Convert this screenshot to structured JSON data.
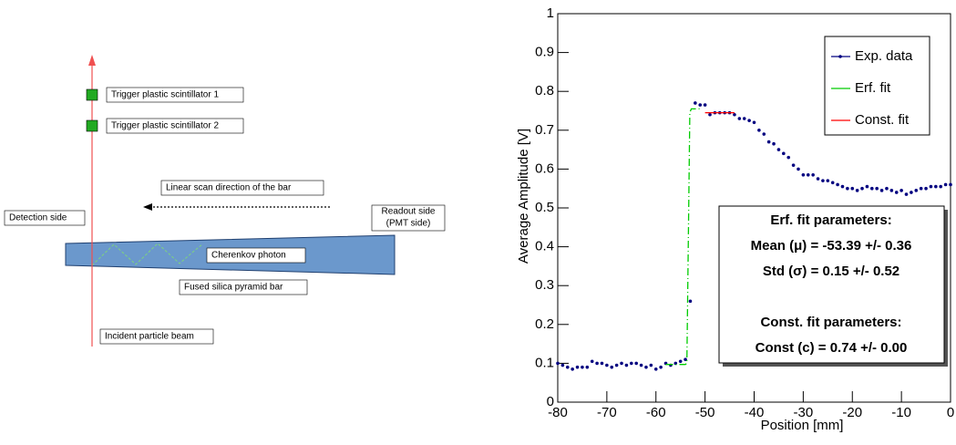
{
  "diagram": {
    "labels": {
      "trigger1": "Trigger plastic scintillator 1",
      "trigger2": "Trigger plastic scintillator 2",
      "scan": "Linear scan direction of the bar",
      "detection": "Detection side",
      "readout": [
        "Readout side",
        "(PMT side)"
      ],
      "cherenkov": "Cherenkov photon",
      "bar": "Fused silica pyramid bar",
      "beam": "Incident particle beam"
    }
  },
  "chart_data": {
    "type": "scatter",
    "x_label": "Position [mm]",
    "y_label": "Average Amplitude [V]",
    "xlim": [
      -80,
      0
    ],
    "ylim": [
      0,
      1
    ],
    "xticks": [
      -80,
      -70,
      -60,
      -50,
      -40,
      -30,
      -20,
      -10,
      0
    ],
    "yticks": [
      0,
      0.1,
      0.2,
      0.3,
      0.4,
      0.5,
      0.6,
      0.7,
      0.8,
      0.9,
      1
    ],
    "legend": "top-right",
    "series": [
      {
        "name": "Exp. data",
        "color": "#000080",
        "mode": "markers",
        "x": [
          -80,
          -79,
          -78,
          -77,
          -76,
          -75,
          -74,
          -73,
          -72,
          -71,
          -70,
          -69,
          -68,
          -67,
          -66,
          -65,
          -64,
          -63,
          -62,
          -61,
          -60,
          -59,
          -58,
          -57,
          -56,
          -55,
          -54,
          -53,
          -52,
          -51,
          -50,
          -49,
          -48,
          -47,
          -46,
          -45,
          -44,
          -43,
          -42,
          -41,
          -40,
          -39,
          -38,
          -37,
          -36,
          -35,
          -34,
          -33,
          -32,
          -31,
          -30,
          -29,
          -28,
          -27,
          -26,
          -25,
          -24,
          -23,
          -22,
          -21,
          -20,
          -19,
          -18,
          -17,
          -16,
          -15,
          -14,
          -13,
          -12,
          -11,
          -10,
          -9,
          -8,
          -7,
          -6,
          -5,
          -4,
          -3,
          -2,
          -1,
          0
        ],
        "values": [
          0.1,
          0.095,
          0.09,
          0.085,
          0.09,
          0.09,
          0.09,
          0.105,
          0.1,
          0.1,
          0.095,
          0.09,
          0.095,
          0.1,
          0.095,
          0.1,
          0.1,
          0.095,
          0.09,
          0.095,
          0.085,
          0.09,
          0.1,
          0.095,
          0.1,
          0.105,
          0.11,
          0.26,
          0.77,
          0.765,
          0.765,
          0.74,
          0.745,
          0.745,
          0.745,
          0.745,
          0.74,
          0.73,
          0.73,
          0.725,
          0.72,
          0.7,
          0.69,
          0.67,
          0.665,
          0.65,
          0.64,
          0.63,
          0.61,
          0.6,
          0.585,
          0.585,
          0.585,
          0.575,
          0.57,
          0.57,
          0.565,
          0.56,
          0.555,
          0.55,
          0.55,
          0.545,
          0.55,
          0.555,
          0.55,
          0.55,
          0.545,
          0.55,
          0.545,
          0.54,
          0.545,
          0.535,
          0.54,
          0.545,
          0.55,
          0.55,
          0.555,
          0.555,
          0.555,
          0.56,
          0.56
        ]
      },
      {
        "name": "Erf. fit",
        "color": "#00cc00",
        "mode": "dash-dot",
        "x": [
          -58,
          -54,
          -53.7,
          -53.39,
          -53.1,
          -52.8,
          -51
        ],
        "values": [
          0.097,
          0.097,
          0.1,
          0.43,
          0.745,
          0.755,
          0.755
        ]
      },
      {
        "name": "Const. fit",
        "color": "#ff0000",
        "mode": "solid",
        "x": [
          -50,
          -44
        ],
        "values": [
          0.745,
          0.745
        ]
      }
    ],
    "annotations": [
      "Erf. fit parameters:",
      "Mean (μ) = -53.39 +/- 0.36",
      "Std (σ) = 0.15 +/- 0.52",
      "Const. fit parameters:",
      "Const (c) = 0.74 +/- 0.00"
    ]
  }
}
